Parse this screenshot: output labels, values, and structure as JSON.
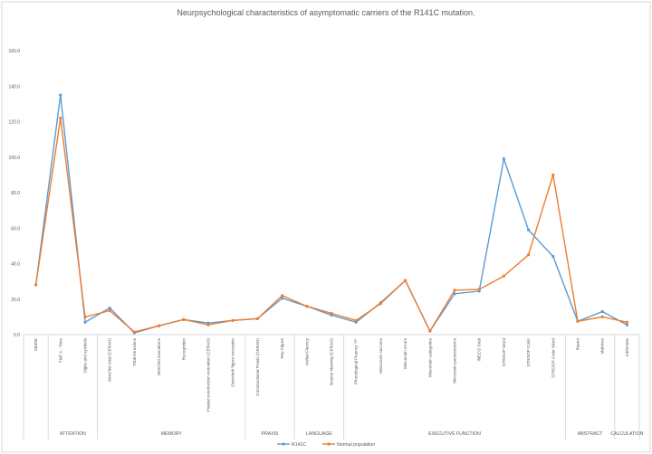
{
  "chart_data": {
    "type": "line",
    "title": "Neurpsychological characteristics of asymptomatic carriers of the R141C mutation.",
    "ylim": [
      0,
      160
    ],
    "yticks": [
      "0.0",
      "20.0",
      "40.0",
      "60.0",
      "80.0",
      "100.0",
      "120.0",
      "140.0",
      "160.0"
    ],
    "categories": [
      "MMSE",
      "TMT A - Time",
      "Digits and symbols",
      "Word list total (CERAD)",
      "Total intrusions",
      "Word list evocations",
      "Recognition",
      "Praxial construction evocation (CERAD)",
      "Osterrieth figure evocation",
      "Constructional Praxis (CERAD)",
      "Rey Figure",
      "Verbal Fluency",
      "Boston Naming (CERAD)",
      "Phonological Fluency \"P\"",
      "Wisconsin success",
      "Wisconsin errors",
      "Wisconsin categories",
      "Wisconsin perseverance",
      "INECO Total",
      "STROOP Word",
      "STROOP Color",
      "STROOP Color Word",
      "Raven",
      "Matrices",
      "Arithmetic"
    ],
    "groups": [
      {
        "label": "",
        "span": 1
      },
      {
        "label": "ATTENTION",
        "span": 2
      },
      {
        "label": "MEMORY",
        "span": 6
      },
      {
        "label": "PRAXIS",
        "span": 2
      },
      {
        "label": "LANGUAGE",
        "span": 2
      },
      {
        "label": "EXECUTIVE FUNCTION",
        "span": 9
      },
      {
        "label": "ABSTRACT",
        "span": 2
      },
      {
        "label": "CALCULATION",
        "span": 1
      }
    ],
    "series": [
      {
        "name": "R141C",
        "color": "#5b9bd5",
        "values": [
          28,
          135,
          7,
          15,
          1,
          5,
          8.5,
          6.5,
          8,
          9,
          20.5,
          16,
          11,
          7,
          18,
          30.5,
          2,
          23,
          24.5,
          99,
          59,
          44,
          7.5,
          13,
          5.5
        ]
      },
      {
        "name": "Normal population",
        "color": "#ed7d31",
        "values": [
          28,
          122,
          10,
          13.5,
          1.5,
          5,
          8.5,
          5.5,
          8,
          9,
          22,
          16,
          12,
          8,
          17.5,
          30.5,
          2,
          25,
          25.5,
          33,
          45,
          90,
          7.5,
          10,
          7
        ]
      }
    ],
    "legend": "bottom"
  }
}
